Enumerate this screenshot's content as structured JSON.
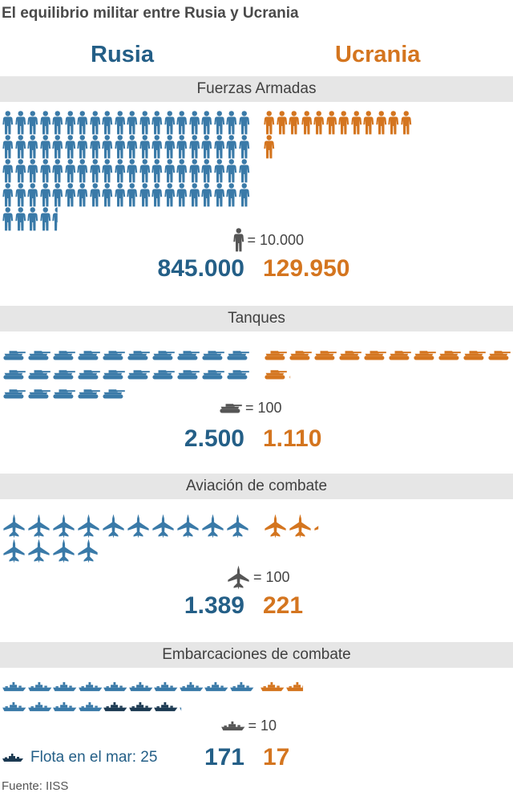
{
  "title": "El equilibrio militar entre Rusia y Ucrania",
  "countries": {
    "russia": "Rusia",
    "ukraine": "Ucrania"
  },
  "colors": {
    "russia": "#3a7aa8",
    "ukraine": "#d4751f",
    "russia_total": "#245f87",
    "fleet_at_sea": "#1c3a52",
    "legend_icon": "#555555"
  },
  "sections": [
    {
      "title": "Fuerzas Armadas",
      "icon": "soldier-icon",
      "legend": "= 10.000",
      "russia_total": "845.000",
      "ukraine_total": "129.950",
      "russia_icons": 84.5,
      "ukraine_icons": 13
    },
    {
      "title": "Tanques",
      "icon": "tank-icon",
      "legend": "= 100",
      "russia_total": "2.500",
      "ukraine_total": "1.110",
      "russia_icons": 25,
      "ukraine_icons": 11.1
    },
    {
      "title": "Aviación de combate",
      "icon": "jet-icon",
      "legend": "= 100",
      "russia_total": "1.389",
      "ukraine_total": "221",
      "russia_icons": 13.89,
      "ukraine_icons": 2.21
    },
    {
      "title": "Embarcaciones de combate",
      "icon": "ship-icon",
      "legend": "= 10",
      "russia_total": "171",
      "ukraine_total": "17",
      "russia_icons": 17.1,
      "ukraine_icons": 1.7,
      "russia_icons_at_sea": 2.5
    }
  ],
  "fleet_note": "Flota en el mar: 25",
  "source": "Fuente: IISS"
}
